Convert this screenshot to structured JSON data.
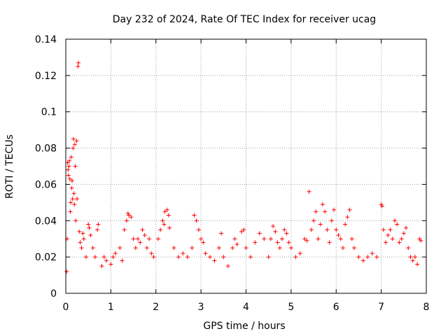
{
  "chart_data": {
    "type": "scatter",
    "title": "Day 232 of 2024, Rate Of TEC Index for receiver ucag",
    "xlabel": "GPS time / hours",
    "ylabel": "ROTI / TECUs",
    "xlim": [
      0,
      8
    ],
    "ylim": [
      0,
      0.14
    ],
    "x_ticks": [
      0,
      1,
      2,
      3,
      4,
      5,
      6,
      7,
      8
    ],
    "x_tick_labels": [
      "0",
      "1",
      "2",
      "3",
      "4",
      "5",
      "6",
      "7",
      "8"
    ],
    "y_ticks": [
      0,
      0.02,
      0.04,
      0.06,
      0.08,
      0.1,
      0.12,
      0.14
    ],
    "y_tick_labels": [
      "0",
      "0.02",
      "0.04",
      "0.06",
      "0.08",
      "0.1",
      "0.12",
      "0.14"
    ],
    "grid": true,
    "marker": "plus",
    "color": "#ff0000",
    "series": [
      {
        "name": "ROTI",
        "points": [
          [
            0.02,
            0.012
          ],
          [
            0.03,
            0.03
          ],
          [
            0.04,
            0.072
          ],
          [
            0.05,
            0.068
          ],
          [
            0.06,
            0.065
          ],
          [
            0.07,
            0.07
          ],
          [
            0.08,
            0.073
          ],
          [
            0.09,
            0.063
          ],
          [
            0.1,
            0.045
          ],
          [
            0.11,
            0.05
          ],
          [
            0.12,
            0.075
          ],
          [
            0.13,
            0.058
          ],
          [
            0.14,
            0.062
          ],
          [
            0.15,
            0.052
          ],
          [
            0.16,
            0.08
          ],
          [
            0.17,
            0.085
          ],
          [
            0.18,
            0.055
          ],
          [
            0.19,
            0.049
          ],
          [
            0.2,
            0.082
          ],
          [
            0.21,
            0.07
          ],
          [
            0.22,
            0.04
          ],
          [
            0.24,
            0.084
          ],
          [
            0.25,
            0.052
          ],
          [
            0.27,
            0.125
          ],
          [
            0.28,
            0.127
          ],
          [
            0.3,
            0.034
          ],
          [
            0.32,
            0.028
          ],
          [
            0.35,
            0.025
          ],
          [
            0.38,
            0.033
          ],
          [
            0.4,
            0.03
          ],
          [
            0.45,
            0.02
          ],
          [
            0.5,
            0.038
          ],
          [
            0.52,
            0.036
          ],
          [
            0.55,
            0.032
          ],
          [
            0.6,
            0.025
          ],
          [
            0.65,
            0.02
          ],
          [
            0.7,
            0.035
          ],
          [
            0.72,
            0.038
          ],
          [
            0.8,
            0.015
          ],
          [
            0.85,
            0.02
          ],
          [
            0.9,
            0.018
          ],
          [
            1.0,
            0.016
          ],
          [
            1.05,
            0.02
          ],
          [
            1.1,
            0.022
          ],
          [
            1.2,
            0.025
          ],
          [
            1.25,
            0.018
          ],
          [
            1.3,
            0.035
          ],
          [
            1.35,
            0.04
          ],
          [
            1.38,
            0.044
          ],
          [
            1.4,
            0.043
          ],
          [
            1.45,
            0.042
          ],
          [
            1.5,
            0.03
          ],
          [
            1.55,
            0.025
          ],
          [
            1.6,
            0.03
          ],
          [
            1.65,
            0.028
          ],
          [
            1.7,
            0.035
          ],
          [
            1.75,
            0.032
          ],
          [
            1.8,
            0.025
          ],
          [
            1.85,
            0.03
          ],
          [
            1.9,
            0.022
          ],
          [
            1.95,
            0.02
          ],
          [
            2.05,
            0.03
          ],
          [
            2.1,
            0.035
          ],
          [
            2.15,
            0.04
          ],
          [
            2.18,
            0.038
          ],
          [
            2.2,
            0.045
          ],
          [
            2.25,
            0.046
          ],
          [
            2.28,
            0.043
          ],
          [
            2.3,
            0.036
          ],
          [
            2.4,
            0.025
          ],
          [
            2.5,
            0.02
          ],
          [
            2.6,
            0.022
          ],
          [
            2.7,
            0.02
          ],
          [
            2.8,
            0.025
          ],
          [
            2.85,
            0.043
          ],
          [
            2.9,
            0.04
          ],
          [
            2.95,
            0.035
          ],
          [
            3.0,
            0.03
          ],
          [
            3.05,
            0.028
          ],
          [
            3.1,
            0.022
          ],
          [
            3.2,
            0.02
          ],
          [
            3.3,
            0.018
          ],
          [
            3.4,
            0.025
          ],
          [
            3.45,
            0.033
          ],
          [
            3.5,
            0.02
          ],
          [
            3.6,
            0.015
          ],
          [
            3.7,
            0.025
          ],
          [
            3.75,
            0.03
          ],
          [
            3.8,
            0.027
          ],
          [
            3.9,
            0.034
          ],
          [
            3.95,
            0.035
          ],
          [
            4.0,
            0.025
          ],
          [
            4.1,
            0.02
          ],
          [
            4.2,
            0.028
          ],
          [
            4.3,
            0.033
          ],
          [
            4.4,
            0.03
          ],
          [
            4.5,
            0.02
          ],
          [
            4.55,
            0.03
          ],
          [
            4.6,
            0.037
          ],
          [
            4.65,
            0.034
          ],
          [
            4.7,
            0.028
          ],
          [
            4.75,
            0.025
          ],
          [
            4.8,
            0.03
          ],
          [
            4.85,
            0.035
          ],
          [
            4.9,
            0.033
          ],
          [
            4.95,
            0.028
          ],
          [
            5.0,
            0.025
          ],
          [
            5.1,
            0.02
          ],
          [
            5.2,
            0.022
          ],
          [
            5.3,
            0.03
          ],
          [
            5.35,
            0.029
          ],
          [
            5.4,
            0.056
          ],
          [
            5.45,
            0.035
          ],
          [
            5.5,
            0.04
          ],
          [
            5.55,
            0.045
          ],
          [
            5.6,
            0.03
          ],
          [
            5.65,
            0.038
          ],
          [
            5.7,
            0.049
          ],
          [
            5.75,
            0.045
          ],
          [
            5.8,
            0.035
          ],
          [
            5.85,
            0.028
          ],
          [
            5.9,
            0.04
          ],
          [
            5.95,
            0.046
          ],
          [
            6.0,
            0.035
          ],
          [
            6.05,
            0.032
          ],
          [
            6.1,
            0.03
          ],
          [
            6.15,
            0.025
          ],
          [
            6.2,
            0.038
          ],
          [
            6.25,
            0.042
          ],
          [
            6.3,
            0.046
          ],
          [
            6.35,
            0.03
          ],
          [
            6.4,
            0.025
          ],
          [
            6.5,
            0.02
          ],
          [
            6.6,
            0.018
          ],
          [
            6.7,
            0.02
          ],
          [
            6.8,
            0.022
          ],
          [
            6.9,
            0.02
          ],
          [
            7.0,
            0.049
          ],
          [
            7.02,
            0.048
          ],
          [
            7.05,
            0.035
          ],
          [
            7.1,
            0.028
          ],
          [
            7.15,
            0.032
          ],
          [
            7.2,
            0.035
          ],
          [
            7.25,
            0.03
          ],
          [
            7.3,
            0.04
          ],
          [
            7.35,
            0.038
          ],
          [
            7.4,
            0.028
          ],
          [
            7.45,
            0.03
          ],
          [
            7.5,
            0.033
          ],
          [
            7.55,
            0.036
          ],
          [
            7.6,
            0.025
          ],
          [
            7.65,
            0.02
          ],
          [
            7.7,
            0.018
          ],
          [
            7.75,
            0.02
          ],
          [
            7.8,
            0.016
          ],
          [
            7.85,
            0.03
          ],
          [
            7.88,
            0.029
          ]
        ]
      }
    ]
  }
}
